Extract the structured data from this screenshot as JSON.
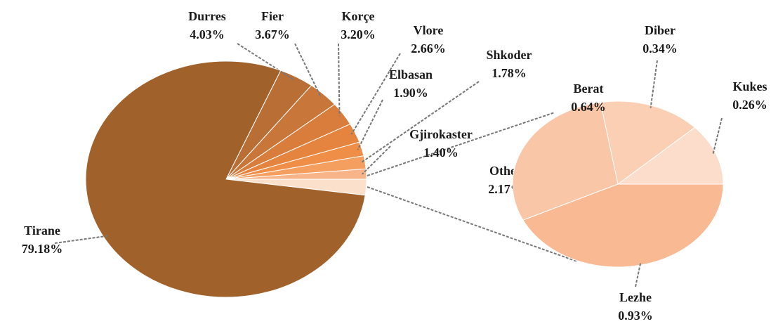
{
  "chart_data": {
    "type": "pie",
    "categories": [
      "Tirane",
      "Durres",
      "Fier",
      "Korçe",
      "Vlore",
      "Elbasan",
      "Shkoder",
      "Gjirokaster",
      "Other"
    ],
    "values": [
      79.18,
      4.03,
      3.67,
      3.2,
      2.66,
      1.9,
      1.78,
      1.4,
      2.17
    ],
    "value_labels": [
      "79.18%",
      "4.03%",
      "3.67%",
      "3.20%",
      "2.66%",
      "1.90%",
      "1.78%",
      "1.40%",
      "2.17%"
    ],
    "colors": [
      "#a0612a",
      "#b86e35",
      "#c9763a",
      "#d97d3c",
      "#e5843f",
      "#ef8e46",
      "#f49e60",
      "#f7b488",
      "#fbe0cc"
    ],
    "secondary": {
      "categories": [
        "Kukes",
        "Diber",
        "Berat",
        "Lezhe"
      ],
      "values": [
        0.26,
        0.34,
        0.64,
        0.93
      ],
      "value_labels": [
        "0.26%",
        "0.34%",
        "0.64%",
        "0.93%"
      ],
      "colors": [
        "#fcdccb",
        "#fbcfb4",
        "#f9c6a8",
        "#f8b993"
      ]
    }
  }
}
